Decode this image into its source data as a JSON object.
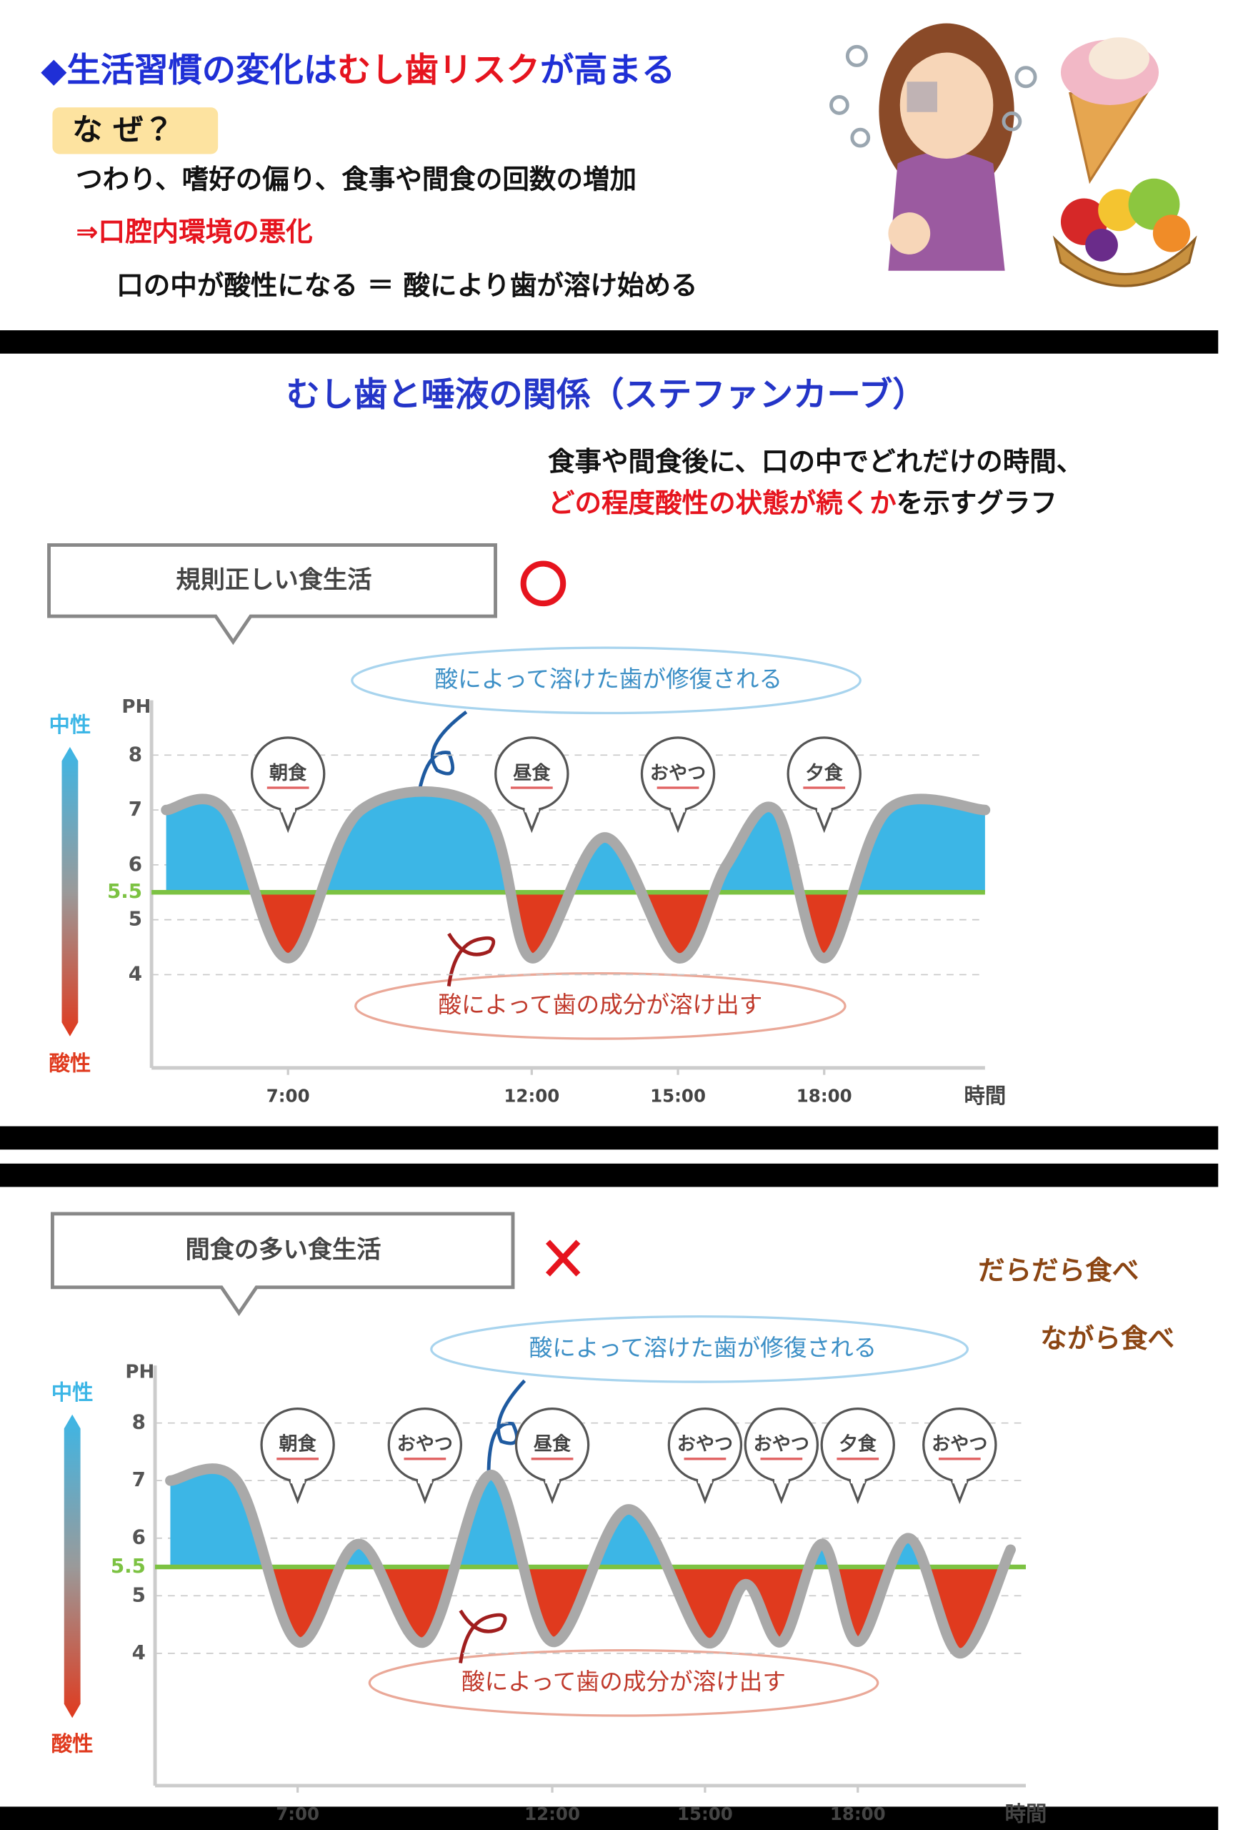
{
  "header": {
    "title": [
      "◆生活習慣の変化は",
      "むし歯リスク",
      "が高まる"
    ],
    "question": "な ぜ？",
    "lines": [
      "つわり、嗜好の偏り、食事や間食の回数の増加",
      "⇒口腔内環境の悪化",
      "口の中が酸性になる ＝ 酸により歯が溶け始める"
    ]
  },
  "section": {
    "title": "むし歯と唾液の関係（ステファンカーブ）",
    "description": [
      "食事や間食後に、口の中でどれだけの時間、",
      "どの程度酸性の状態が続くか",
      "を示すグラフ"
    ]
  },
  "notes": [
    "だらだら食べ",
    "ながら食べ"
  ],
  "chart_data": [
    {
      "type": "line",
      "title": "規則正しい食生活",
      "annotations": [
        "酸によって溶けた歯が修復される",
        "酸によって歯の成分が溶け出す"
      ],
      "x_label": "時間",
      "y_label": "PH",
      "neutral_label": "中性",
      "acid_label": "酸性",
      "x": [
        4.5,
        5.7,
        7,
        8.5,
        11,
        12,
        13.5,
        15,
        16,
        17,
        18,
        19.3,
        21.3
      ],
      "values": [
        7,
        7,
        4.3,
        7,
        7,
        4.3,
        6.5,
        4.3,
        6,
        7,
        4.3,
        7,
        7
      ],
      "color": "#a9a9a9",
      "above_color": "#3cb6e6",
      "below_color": "#e03a1e",
      "critical_line": {
        "value": 5.5,
        "color": "#7cc242"
      },
      "events": [
        {
          "label": "朝食",
          "x": 7
        },
        {
          "label": "昼食",
          "x": 12
        },
        {
          "label": "おやつ",
          "x": 15
        },
        {
          "label": "夕食",
          "x": 18
        }
      ],
      "xlim": [
        4.2,
        21.3
      ],
      "ylim": [
        2.3,
        9
      ],
      "xticks": [
        {
          "value": 7,
          "label": "7:00"
        },
        {
          "value": 12,
          "label": "12:00"
        },
        {
          "value": 15,
          "label": "15:00"
        },
        {
          "value": 18,
          "label": "18:00"
        }
      ],
      "yticks": [
        4,
        5,
        6,
        7,
        8
      ],
      "grid": true
    },
    {
      "type": "line",
      "title": "間食の多い食生活",
      "annotations": [
        "酸によって溶けた歯が修復される",
        "酸によって歯の成分が溶け出す"
      ],
      "x_label": "時間",
      "y_label": "PH",
      "neutral_label": "中性",
      "acid_label": "酸性",
      "x": [
        4.5,
        5.8,
        7,
        8.2,
        9.5,
        10.8,
        12,
        13.5,
        15,
        15.8,
        16.5,
        17.3,
        18,
        19,
        20,
        21
      ],
      "values": [
        7,
        7,
        4.2,
        5.9,
        4.2,
        7.1,
        4.2,
        6.5,
        4.2,
        5.2,
        4.2,
        5.9,
        4.2,
        6,
        4,
        5.8
      ],
      "color": "#a9a9a9",
      "above_color": "#3cb6e6",
      "below_color": "#e03a1e",
      "critical_line": {
        "value": 5.5,
        "color": "#7cc242"
      },
      "events": [
        {
          "label": "朝食",
          "x": 7
        },
        {
          "label": "おやつ",
          "x": 9.5
        },
        {
          "label": "昼食",
          "x": 12
        },
        {
          "label": "おやつ",
          "x": 15
        },
        {
          "label": "おやつ",
          "x": 16.5
        },
        {
          "label": "夕食",
          "x": 18
        },
        {
          "label": "おやつ",
          "x": 20
        }
      ],
      "xlim": [
        4.2,
        21.3
      ],
      "ylim": [
        1.7,
        9
      ],
      "xticks": [
        {
          "value": 7,
          "label": "7:00"
        },
        {
          "value": 12,
          "label": "12:00"
        },
        {
          "value": 15,
          "label": "15:00"
        },
        {
          "value": 18,
          "label": "18:00"
        }
      ],
      "yticks": [
        4,
        5,
        6,
        7,
        8
      ],
      "grid": true
    }
  ]
}
